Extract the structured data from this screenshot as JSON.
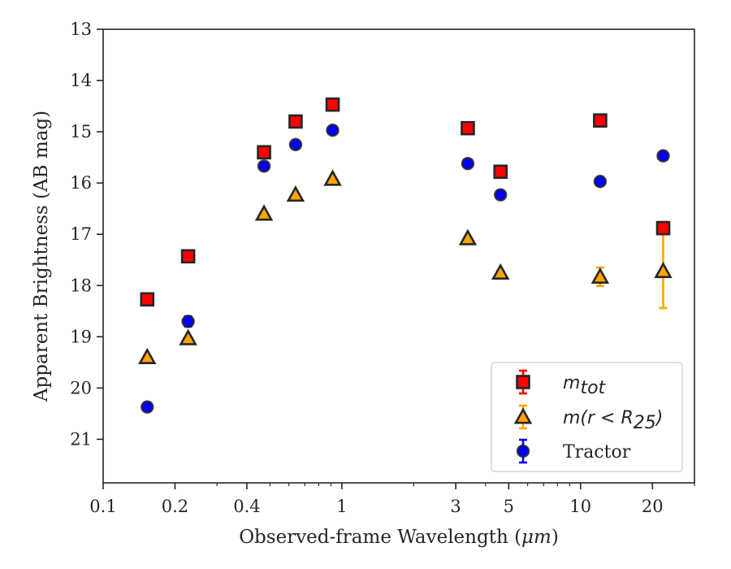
{
  "chart_data": {
    "type": "scatter",
    "title": "",
    "xlabel": "Observed-frame Wavelength (",
    "xlabel_unit": "μm",
    "xlabel_close": ")",
    "ylabel": "Apparent Brightness (AB mag)",
    "x_scale": "log",
    "y_inverted": true,
    "xlim": [
      0.1,
      30
    ],
    "ylim": [
      21.85,
      13
    ],
    "x_ticks": [
      {
        "value": 0.1,
        "label": "0.1"
      },
      {
        "value": 0.2,
        "label": "0.2"
      },
      {
        "value": 0.4,
        "label": "0.4"
      },
      {
        "value": 1,
        "label": "1"
      },
      {
        "value": 3,
        "label": "3"
      },
      {
        "value": 5,
        "label": "5"
      },
      {
        "value": 10,
        "label": "10"
      },
      {
        "value": 20,
        "label": "20"
      }
    ],
    "y_ticks": [
      {
        "value": 13,
        "label": "13"
      },
      {
        "value": 14,
        "label": "14"
      },
      {
        "value": 15,
        "label": "15"
      },
      {
        "value": 16,
        "label": "16"
      },
      {
        "value": 17,
        "label": "17"
      },
      {
        "value": 18,
        "label": "18"
      },
      {
        "value": 19,
        "label": "19"
      },
      {
        "value": 20,
        "label": "20"
      },
      {
        "value": 21,
        "label": "21"
      }
    ],
    "x": [
      0.153,
      0.227,
      0.472,
      0.64,
      0.915,
      3.37,
      4.62,
      12.08,
      22.19
    ],
    "series": [
      {
        "key": "mtot",
        "legend_base": "m",
        "legend_sub": "tot",
        "marker": "square",
        "color": "#ff0000",
        "edge": "#262626",
        "values": [
          18.27,
          17.43,
          15.4,
          14.8,
          14.47,
          14.93,
          15.78,
          14.78,
          16.88
        ],
        "errors": [
          0.03,
          0.03,
          0.02,
          0.02,
          0.02,
          0.02,
          0.03,
          0.05,
          0.12
        ]
      },
      {
        "key": "m25",
        "legend_base": "m(r < R",
        "legend_sub": "25",
        "legend_close": ")",
        "marker": "triangle",
        "color": "#ffa500",
        "edge": "#262626",
        "values": [
          19.4,
          19.03,
          16.6,
          16.23,
          15.92,
          17.08,
          17.75,
          17.83,
          17.72
        ],
        "errors": [
          0.03,
          0.03,
          0.02,
          0.02,
          0.02,
          0.03,
          0.04,
          0.18,
          0.72
        ]
      },
      {
        "key": "tractor",
        "legend_label": "Tractor",
        "marker": "circle",
        "color": "#0000ff",
        "edge": "#262626",
        "values": [
          20.37,
          18.7,
          15.67,
          15.25,
          14.97,
          15.62,
          16.23,
          15.97,
          15.47
        ],
        "errors": [
          0.06,
          0.1,
          0.05,
          0.04,
          0.04,
          0.04,
          0.06,
          0.06,
          0.06
        ]
      }
    ],
    "legend_position": "lower-right",
    "grid": false
  }
}
